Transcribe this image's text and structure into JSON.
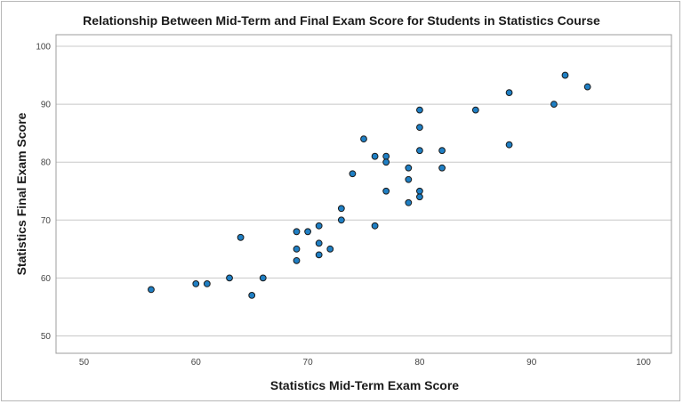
{
  "chart_data": {
    "type": "scatter",
    "title": "Relationship Between Mid-Term and Final Exam Score for Students in Statistics Course",
    "xlabel": "Statistics Mid-Term Exam Score",
    "ylabel": "Statistics Final Exam Score",
    "xlim": [
      47.5,
      102.5
    ],
    "ylim": [
      47,
      102
    ],
    "xticks": [
      50,
      60,
      70,
      80,
      90,
      100
    ],
    "yticks": [
      50,
      60,
      70,
      80,
      90,
      100
    ],
    "grid": "horizontal",
    "point_color": "#1f7fc4",
    "points": [
      {
        "x": 56,
        "y": 58
      },
      {
        "x": 60,
        "y": 59
      },
      {
        "x": 61,
        "y": 59
      },
      {
        "x": 63,
        "y": 60
      },
      {
        "x": 64,
        "y": 67
      },
      {
        "x": 65,
        "y": 57
      },
      {
        "x": 66,
        "y": 60
      },
      {
        "x": 69,
        "y": 68
      },
      {
        "x": 69,
        "y": 65
      },
      {
        "x": 69,
        "y": 63
      },
      {
        "x": 70,
        "y": 68
      },
      {
        "x": 71,
        "y": 69
      },
      {
        "x": 71,
        "y": 66
      },
      {
        "x": 71,
        "y": 64
      },
      {
        "x": 72,
        "y": 65
      },
      {
        "x": 73,
        "y": 72
      },
      {
        "x": 73,
        "y": 70
      },
      {
        "x": 74,
        "y": 78
      },
      {
        "x": 75,
        "y": 84
      },
      {
        "x": 76,
        "y": 81
      },
      {
        "x": 76,
        "y": 69
      },
      {
        "x": 77,
        "y": 81
      },
      {
        "x": 77,
        "y": 80
      },
      {
        "x": 77,
        "y": 75
      },
      {
        "x": 79,
        "y": 79
      },
      {
        "x": 79,
        "y": 77
      },
      {
        "x": 79,
        "y": 73
      },
      {
        "x": 80,
        "y": 89
      },
      {
        "x": 80,
        "y": 86
      },
      {
        "x": 80,
        "y": 82
      },
      {
        "x": 80,
        "y": 75
      },
      {
        "x": 80,
        "y": 74
      },
      {
        "x": 82,
        "y": 82
      },
      {
        "x": 82,
        "y": 79
      },
      {
        "x": 85,
        "y": 89
      },
      {
        "x": 88,
        "y": 92
      },
      {
        "x": 88,
        "y": 83
      },
      {
        "x": 92,
        "y": 90
      },
      {
        "x": 93,
        "y": 95
      },
      {
        "x": 95,
        "y": 93
      }
    ]
  }
}
